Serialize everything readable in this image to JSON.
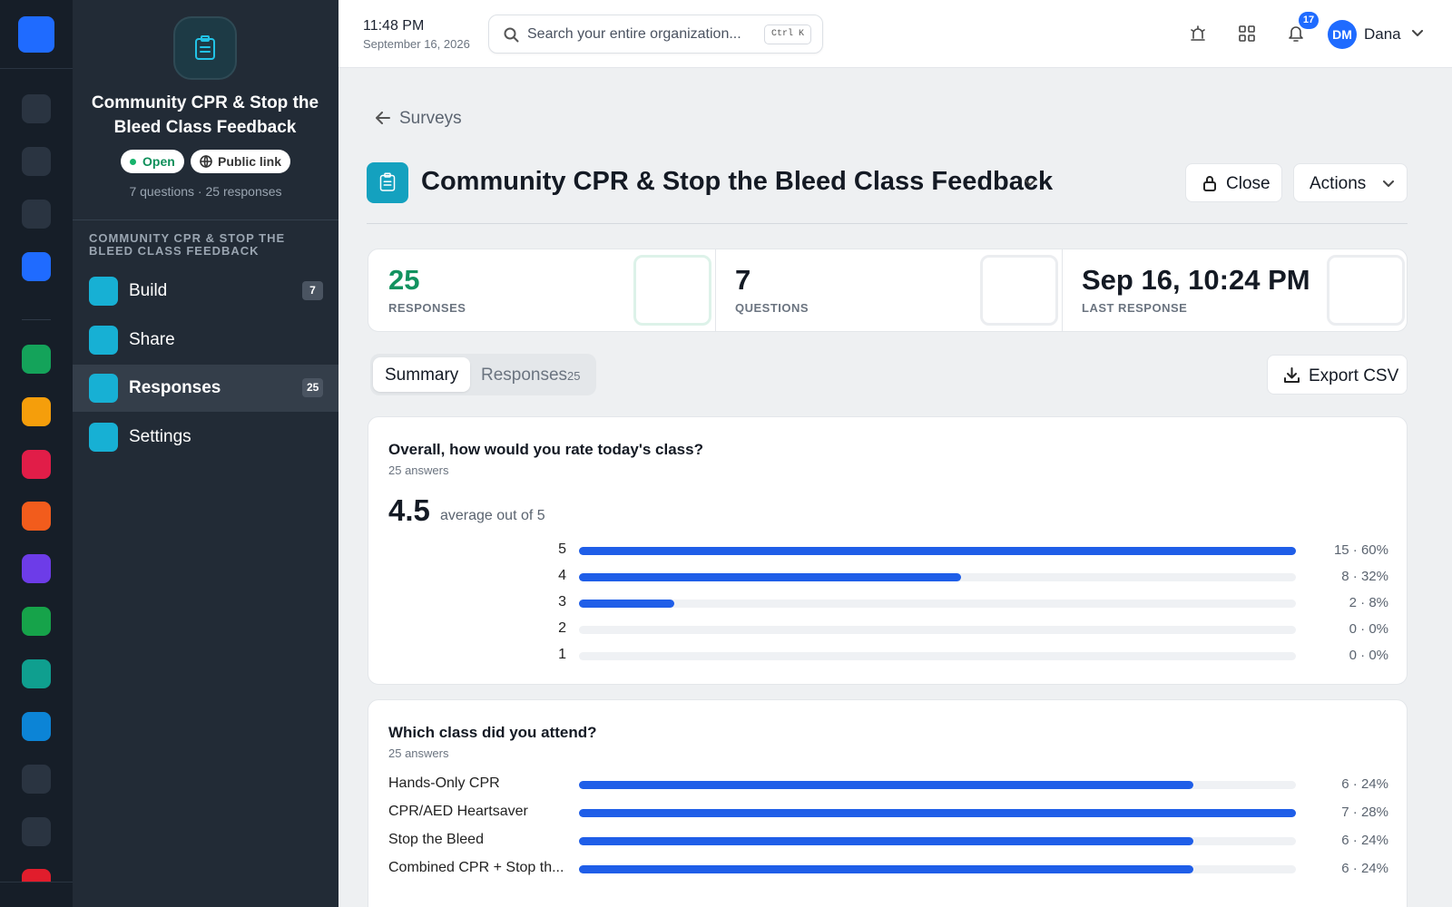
{
  "topbar": {
    "time": "11:48 PM",
    "date": "September 16, 2026",
    "search_placeholder": "Search your entire organization...",
    "search_shortcut": "Ctrl K",
    "notification_count": 17,
    "user_initials": "DM",
    "user_name": "Dana"
  },
  "sidebar": {
    "survey_title": "Community CPR & Stop the Bleed Class Feedback",
    "status": "Open",
    "public_link": "Public link",
    "meta": "7 questions · 25 responses",
    "section_heading": "COMMUNITY CPR & STOP THE BLEED CLASS FEEDBACK",
    "nav": [
      {
        "label": "Build",
        "badge": 7
      },
      {
        "label": "Share"
      },
      {
        "label": "Responses",
        "badge": 25
      },
      {
        "label": "Settings"
      }
    ]
  },
  "main": {
    "back_link": "Surveys",
    "title": "Community CPR & Stop the Bleed Class Feedback",
    "close_button": "Close",
    "actions_button": "Actions",
    "stats": [
      {
        "value": 25,
        "label": "RESPONSES"
      },
      {
        "value": 7,
        "label": "QUESTIONS"
      },
      {
        "value": "Sep 16, 10:24 PM",
        "label": "LAST RESPONSE"
      }
    ],
    "tabs": [
      {
        "label": "Summary"
      },
      {
        "label": "Responses",
        "count": 25
      }
    ],
    "export_button": "Export CSV",
    "questions": [
      {
        "title": "Overall, how would you rate today's class?",
        "answers": "25 answers",
        "average": 4.5,
        "average_label": "average out of 5",
        "options": [
          {
            "label": "5",
            "count": 15,
            "percent": 60,
            "value_label": "15 · 60%"
          },
          {
            "label": "4",
            "count": 8,
            "percent": 32,
            "value_label": "8 · 32%"
          },
          {
            "label": "3",
            "count": 2,
            "percent": 8,
            "value_label": "2 · 8%"
          },
          {
            "label": "2",
            "count": 0,
            "percent": 0,
            "value_label": "0 · 0%"
          },
          {
            "label": "1",
            "count": 0,
            "percent": 0,
            "value_label": "0 · 0%"
          }
        ]
      },
      {
        "title": "Which class did you attend?",
        "answers": "25 answers",
        "options": [
          {
            "label": "Hands-Only CPR",
            "count": 6,
            "percent": 24,
            "value_label": "6 · 24%"
          },
          {
            "label": "CPR/AED Heartsaver",
            "count": 7,
            "percent": 28,
            "value_label": "7 · 28%"
          },
          {
            "label": "Stop the Bleed",
            "count": 6,
            "percent": 24,
            "value_label": "6 · 24%"
          },
          {
            "label": "Combined CPR + Stop th...",
            "count": 6,
            "percent": 24,
            "value_label": "6 · 24%"
          }
        ]
      }
    ]
  }
}
